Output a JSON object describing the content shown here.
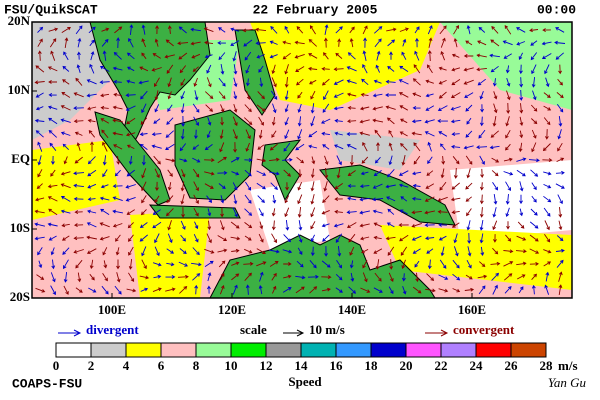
{
  "header": {
    "source": "FSU/QuikSCAT",
    "date": "22 February 2005",
    "time": "00:00"
  },
  "map": {
    "lat_labels": [
      "20N",
      "10N",
      "EQ",
      "10S",
      "20S"
    ],
    "lon_labels": [
      "100E",
      "120E",
      "140E",
      "160E"
    ]
  },
  "legend": {
    "divergent": "divergent",
    "scale": "scale",
    "scale_value": "10 m/s",
    "convergent": "convergent"
  },
  "colorbar": {
    "ticks": [
      0,
      2,
      4,
      6,
      8,
      10,
      12,
      14,
      16,
      18,
      20,
      22,
      24,
      26,
      28
    ],
    "unit": "m/s",
    "title": "Speed",
    "colors": [
      "#ffffff",
      "#cccccc",
      "#ffff00",
      "#ffc0c0",
      "#98fb98",
      "#00ee00",
      "#999999",
      "#00b2b2",
      "#3399ff",
      "#0000cc",
      "#ff55ff",
      "#b080ff",
      "#ff0000",
      "#cc4400",
      "#000000"
    ]
  },
  "footer": {
    "left": "COAPS-FSU",
    "right": "Yan Gu"
  }
}
